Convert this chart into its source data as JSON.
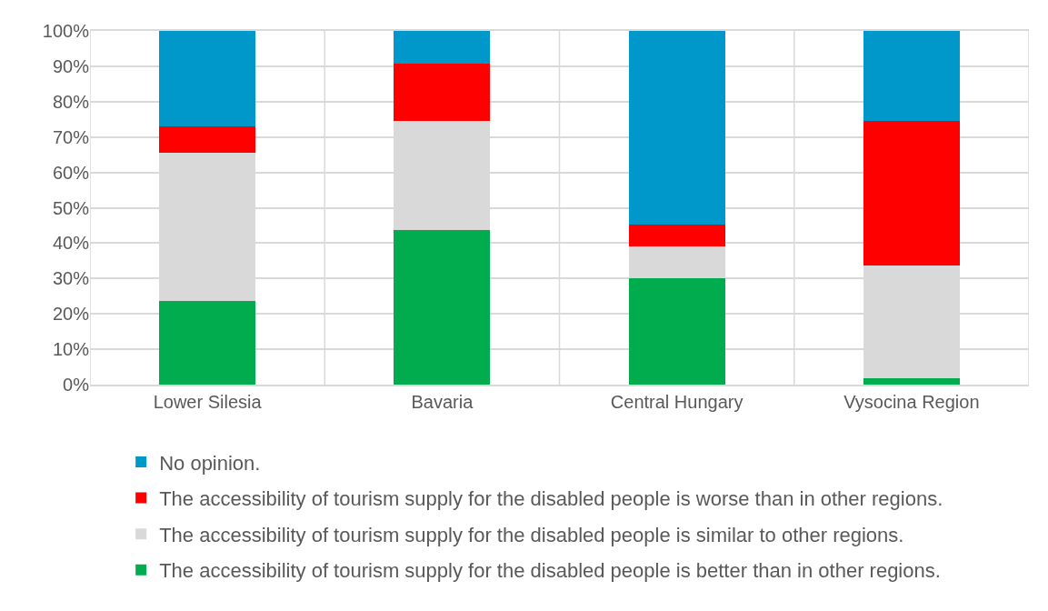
{
  "chart_data": {
    "type": "bar",
    "stacked": true,
    "categories": [
      "Lower Silesia",
      "Bavaria",
      "Central Hungary",
      "Vysocina Region"
    ],
    "series": [
      {
        "name": "The accessibility of tourism supply for the disabled people is better than in other regions.",
        "color": "#00ac4e",
        "values": [
          23.7,
          43.8,
          30.0,
          1.7
        ]
      },
      {
        "name": "The accessibility of tourism supply for the disabled people is similar to other regions.",
        "color": "#d9d9d9",
        "values": [
          41.8,
          30.8,
          9.2,
          32.0
        ]
      },
      {
        "name": "The accessibility of tourism supply for the disabled people is worse than in other regions.",
        "color": "#ff0000",
        "values": [
          7.6,
          16.2,
          6.0,
          40.9
        ]
      },
      {
        "name": "No opinion.",
        "color": "#0098cb",
        "values": [
          26.9,
          9.2,
          54.8,
          25.4
        ]
      }
    ],
    "ylim": [
      0,
      100
    ],
    "yticks": [
      {
        "value": 0,
        "label": "0%"
      },
      {
        "value": 10,
        "label": "10%"
      },
      {
        "value": 20,
        "label": "20%"
      },
      {
        "value": 30,
        "label": "30%"
      },
      {
        "value": 40,
        "label": "40%"
      },
      {
        "value": 50,
        "label": "50%"
      },
      {
        "value": 60,
        "label": "60%"
      },
      {
        "value": 70,
        "label": "70%"
      },
      {
        "value": 80,
        "label": "80%"
      },
      {
        "value": 90,
        "label": "90%"
      },
      {
        "value": 100,
        "label": "100%"
      }
    ],
    "grid": true,
    "legend": "bottom"
  }
}
